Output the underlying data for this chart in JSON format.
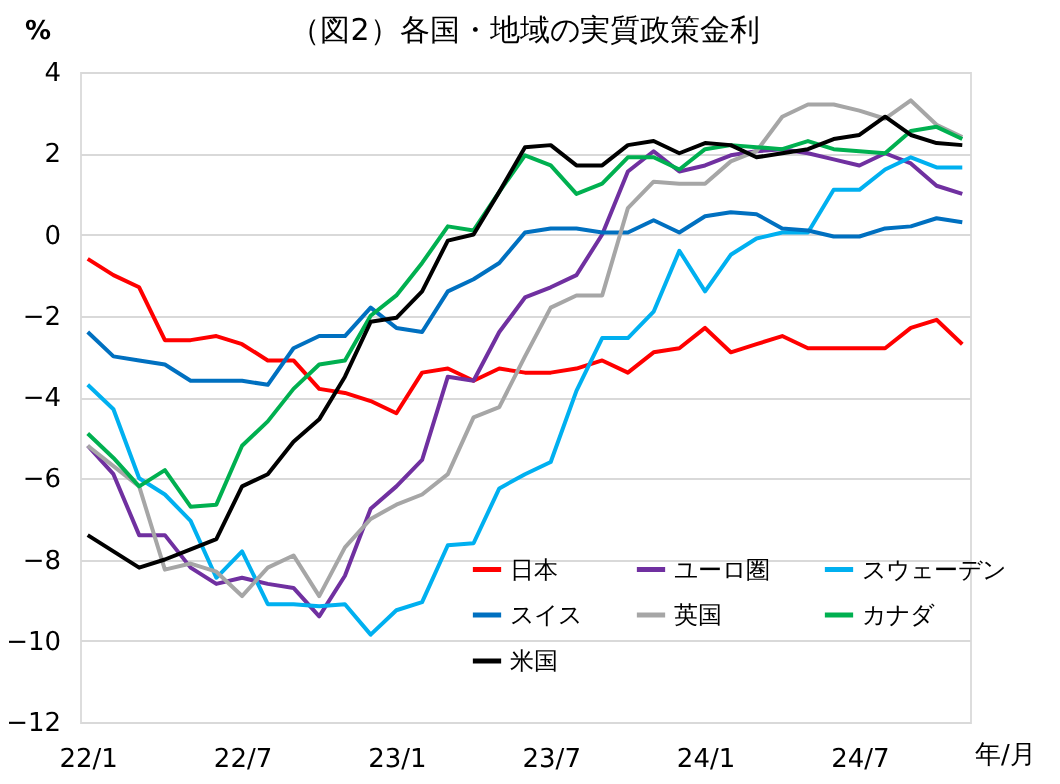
{
  "chart_data": {
    "type": "line",
    "title": "（図2）各国・地域の実質政策金利",
    "ylabel": "%",
    "xlabel": "年/月",
    "categories": [
      "22/1",
      null,
      null,
      null,
      null,
      null,
      "22/7",
      null,
      null,
      null,
      null,
      null,
      "23/1",
      null,
      null,
      null,
      null,
      null,
      "23/7",
      null,
      null,
      null,
      null,
      null,
      "24/1",
      null,
      null,
      null,
      null,
      null,
      "24/7",
      null,
      null,
      null,
      null
    ],
    "series": [
      {
        "name": "日本",
        "color": "#ff0000",
        "values": [
          -0.6,
          -1.0,
          -1.3,
          -2.6,
          -2.6,
          -2.5,
          -2.7,
          -3.1,
          -3.1,
          -3.8,
          -3.9,
          -4.1,
          -4.4,
          -3.4,
          -3.3,
          -3.6,
          -3.3,
          -3.4,
          -3.4,
          -3.3,
          -3.1,
          -3.4,
          -2.9,
          -2.8,
          -2.3,
          -2.9,
          -2.7,
          -2.5,
          -2.8,
          -2.8,
          -2.8,
          -2.8,
          -2.3,
          -2.1,
          -2.7
        ]
      },
      {
        "name": "ユーロ圏",
        "color": "#7030a0",
        "values": [
          -5.2,
          -5.9,
          -7.4,
          -7.4,
          -8.2,
          -8.6,
          -8.45,
          -8.6,
          -8.7,
          -9.4,
          -8.4,
          -6.75,
          -6.2,
          -5.55,
          -3.5,
          -3.6,
          -2.4,
          -1.55,
          -1.3,
          -1.0,
          0.0,
          1.55,
          2.05,
          1.55,
          1.7,
          1.95,
          2.05,
          2.1,
          2.0,
          1.85,
          1.7,
          2.0,
          1.75,
          1.2,
          1.0
        ]
      },
      {
        "name": "スウェーデン",
        "color": "#00b0f0",
        "values": [
          -3.7,
          -4.3,
          -6.0,
          -6.4,
          -7.05,
          -8.45,
          -7.8,
          -9.1,
          -9.1,
          -9.15,
          -9.1,
          -9.85,
          -9.25,
          -9.05,
          -7.65,
          -7.6,
          -6.25,
          -5.9,
          -5.6,
          -3.85,
          -2.55,
          -2.55,
          -1.9,
          -0.4,
          -1.4,
          -0.5,
          -0.1,
          0.05,
          0.05,
          1.1,
          1.1,
          1.6,
          1.9,
          1.65,
          1.65
        ]
      },
      {
        "name": "スイス",
        "color": "#0070c0",
        "values": [
          -2.4,
          -3.0,
          -3.1,
          -3.2,
          -3.6,
          -3.6,
          -3.6,
          -3.7,
          -2.8,
          -2.5,
          -2.5,
          -1.8,
          -2.3,
          -2.4,
          -1.4,
          -1.1,
          -0.7,
          0.05,
          0.15,
          0.15,
          0.05,
          0.05,
          0.35,
          0.05,
          0.45,
          0.55,
          0.5,
          0.15,
          0.1,
          -0.05,
          -0.05,
          0.15,
          0.2,
          0.4,
          0.3
        ]
      },
      {
        "name": "英国",
        "color": "#a6a6a6",
        "values": [
          -5.2,
          -5.7,
          -6.2,
          -8.25,
          -8.1,
          -8.3,
          -8.9,
          -8.2,
          -7.9,
          -8.9,
          -7.7,
          -7.0,
          -6.65,
          -6.4,
          -5.9,
          -4.5,
          -4.25,
          -3.0,
          -1.8,
          -1.5,
          -1.5,
          0.65,
          1.3,
          1.25,
          1.25,
          1.8,
          2.05,
          2.9,
          3.2,
          3.2,
          3.05,
          2.85,
          3.3,
          2.7,
          2.4
        ]
      },
      {
        "name": "カナダ",
        "color": "#00b050",
        "values": [
          -4.9,
          -5.5,
          -6.2,
          -5.8,
          -6.7,
          -6.65,
          -5.2,
          -4.6,
          -3.8,
          -3.2,
          -3.1,
          -2.0,
          -1.5,
          -0.7,
          0.2,
          0.1,
          1.05,
          1.95,
          1.7,
          1.0,
          1.25,
          1.9,
          1.9,
          1.6,
          2.1,
          2.2,
          2.15,
          2.1,
          2.3,
          2.1,
          2.05,
          2.0,
          2.55,
          2.65,
          2.35
        ]
      },
      {
        "name": "米国",
        "color": "#000000",
        "values": [
          -7.4,
          -7.8,
          -8.2,
          -8.0,
          -7.75,
          -7.5,
          -6.2,
          -5.9,
          -5.1,
          -4.55,
          -3.5,
          -2.15,
          -2.05,
          -1.4,
          -0.15,
          0.0,
          1.05,
          2.15,
          2.2,
          1.7,
          1.7,
          2.2,
          2.3,
          2.0,
          2.25,
          2.2,
          1.9,
          2.0,
          2.1,
          2.35,
          2.45,
          2.9,
          2.45,
          2.25,
          2.2
        ]
      }
    ],
    "ylim": [
      -12,
      4
    ],
    "yticks": [
      -12,
      -10,
      -8,
      -6,
      -4,
      -2,
      0,
      2,
      4
    ],
    "grid": "y",
    "legend": "bottom right"
  }
}
